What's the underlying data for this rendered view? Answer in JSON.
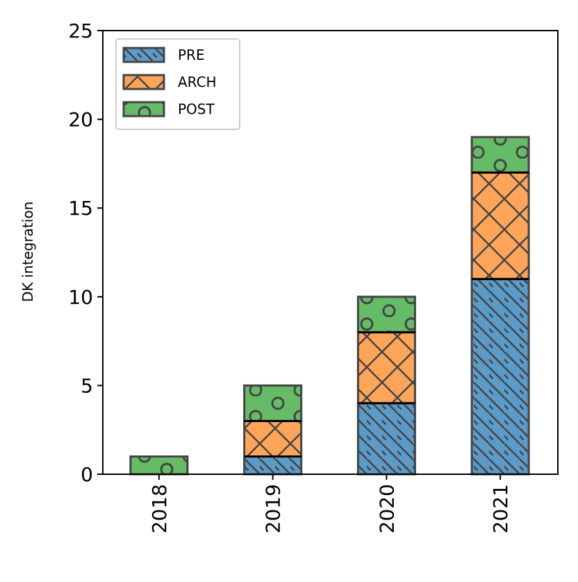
{
  "chart_data": {
    "type": "bar",
    "stacked": true,
    "categories": [
      "2018",
      "2019",
      "2020",
      "2021"
    ],
    "series": [
      {
        "name": "PRE",
        "values": [
          0,
          1,
          4,
          11
        ],
        "color": "#5b9bc9",
        "hatch": "diagonal-backslash"
      },
      {
        "name": "ARCH",
        "values": [
          0,
          2,
          4,
          6
        ],
        "color": "#ffa55a",
        "hatch": "cross"
      },
      {
        "name": "POST",
        "values": [
          1,
          2,
          2,
          2
        ],
        "color": "#66bb66",
        "hatch": "circles"
      }
    ],
    "ylabel": "DK integration",
    "xlabel": "",
    "ylim": [
      0,
      25
    ],
    "yticks": [
      0,
      5,
      10,
      15,
      20,
      25
    ],
    "grid": false,
    "legend_position": "top-left"
  }
}
